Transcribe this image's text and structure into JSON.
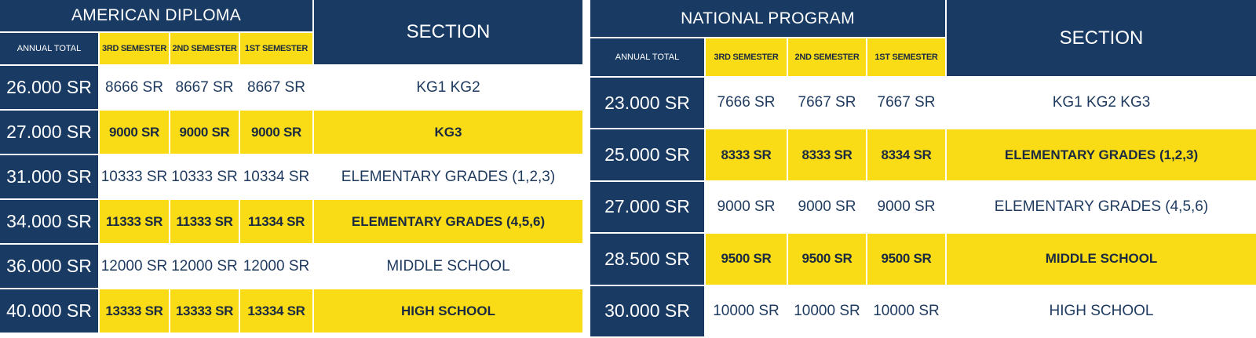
{
  "american": {
    "title": "AMERICAN DIPLOMA",
    "section_header": "SECTION",
    "col_annual": "ANNUAL TOTAL",
    "col_sem3": "3RD SEMESTER",
    "col_sem2": "2ND SEMESTER",
    "col_sem1": "1ST SEMESTER",
    "rows": [
      {
        "total": "26.000 SR",
        "sem3": "8666 SR",
        "sem2": "8667 SR",
        "sem1": "8667 SR",
        "section": "KG1 KG2"
      },
      {
        "total": "27.000 SR",
        "sem3": "9000 SR",
        "sem2": "9000 SR",
        "sem1": "9000 SR",
        "section": "KG3"
      },
      {
        "total": "31.000 SR",
        "sem3": "10333 SR",
        "sem2": "10333 SR",
        "sem1": "10334 SR",
        "section": "ELEMENTARY GRADES (1,2,3)"
      },
      {
        "total": "34.000 SR",
        "sem3": "11333 SR",
        "sem2": "11333 SR",
        "sem1": "11334 SR",
        "section": "ELEMENTARY GRADES (4,5,6)"
      },
      {
        "total": "36.000 SR",
        "sem3": "12000 SR",
        "sem2": "12000 SR",
        "sem1": "12000 SR",
        "section": "MIDDLE SCHOOL"
      },
      {
        "total": "40.000 SR",
        "sem3": "13333 SR",
        "sem2": "13333 SR",
        "sem1": "13334 SR",
        "section": "HIGH SCHOOL"
      }
    ]
  },
  "national": {
    "title": "NATIONAL PROGRAM",
    "section_header": "SECTION",
    "col_annual": "ANNUAL TOTAL",
    "col_sem3": "3RD SEMESTER",
    "col_sem2": "2ND SEMESTER",
    "col_sem1": "1ST SEMESTER",
    "rows": [
      {
        "total": "23.000 SR",
        "sem3": "7666 SR",
        "sem2": "7667 SR",
        "sem1": "7667 SR",
        "section": "KG1 KG2 KG3"
      },
      {
        "total": "25.000 SR",
        "sem3": "8333 SR",
        "sem2": "8333 SR",
        "sem1": "8334 SR",
        "section": "ELEMENTARY GRADES (1,2,3)"
      },
      {
        "total": "27.000 SR",
        "sem3": "9000 SR",
        "sem2": "9000 SR",
        "sem1": "9000 SR",
        "section": "ELEMENTARY GRADES (4,5,6)"
      },
      {
        "total": "28.500 SR",
        "sem3": "9500 SR",
        "sem2": "9500 SR",
        "sem1": "9500 SR",
        "section": "MIDDLE SCHOOL"
      },
      {
        "total": "30.000 SR",
        "sem3": "10000 SR",
        "sem2": "10000 SR",
        "sem1": "10000 SR",
        "section": "HIGH SCHOOL"
      }
    ]
  },
  "colors": {
    "navy": "#183a63",
    "yellow": "#f9dc16",
    "text_dark": "#1e3a5f"
  }
}
